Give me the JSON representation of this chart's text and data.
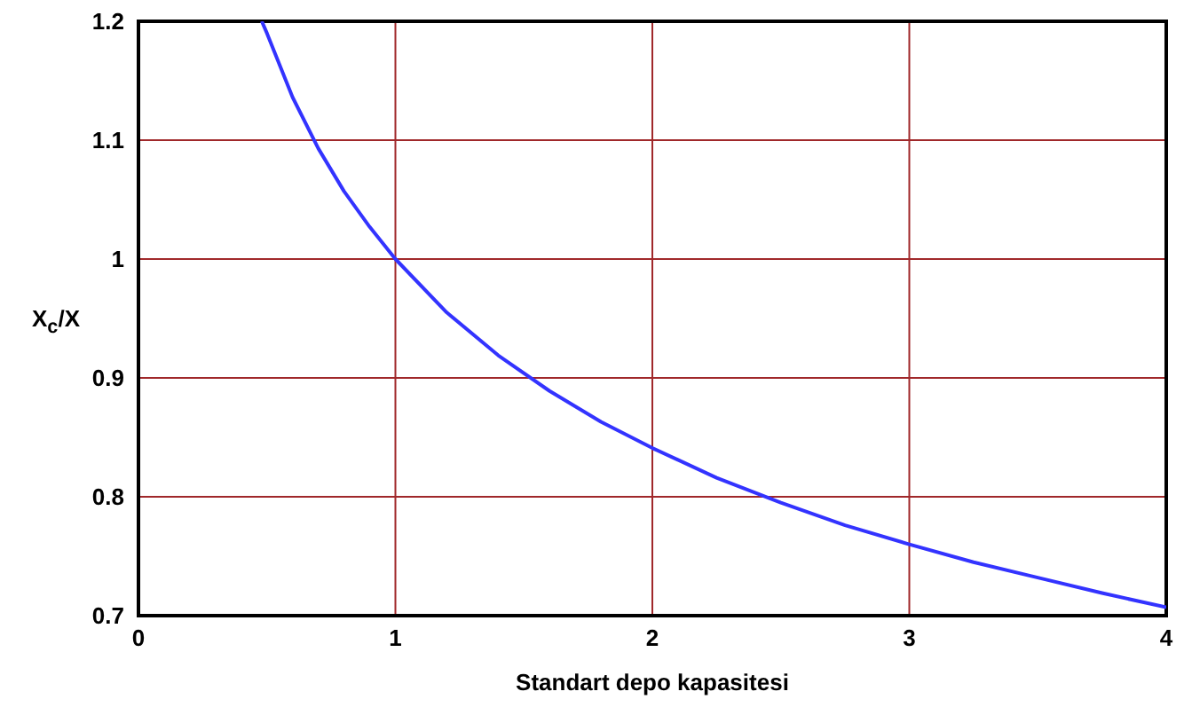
{
  "chart_data": {
    "type": "line",
    "xlabel": "Standart depo kapasitesi",
    "ylabel": "X$_{c}$/X",
    "x": [
      0.48,
      0.5,
      0.6,
      0.7,
      0.8,
      0.9,
      1,
      1.2,
      1.4,
      1.6,
      1.8,
      2,
      2.25,
      2.5,
      2.75,
      3,
      3.25,
      3.5,
      3.75,
      4
    ],
    "series": [
      {
        "color": "#3333ff",
        "values": [
          1.2,
          1.19,
          1.136,
          1.093,
          1.057,
          1.027,
          1.0,
          0.955,
          0.919,
          0.889,
          0.863,
          0.841,
          0.816,
          0.795,
          0.776,
          0.76,
          0.745,
          0.732,
          0.719,
          0.707
        ]
      }
    ],
    "xlim": [
      0,
      4
    ],
    "xticks": [
      0,
      1,
      2,
      3,
      4
    ],
    "ylim": [
      0.7,
      1.2
    ],
    "yticks": [
      0.7,
      0.8,
      0.9,
      1,
      1.1,
      1.2
    ],
    "grid": true,
    "marker": "none",
    "line_style": "solid"
  }
}
